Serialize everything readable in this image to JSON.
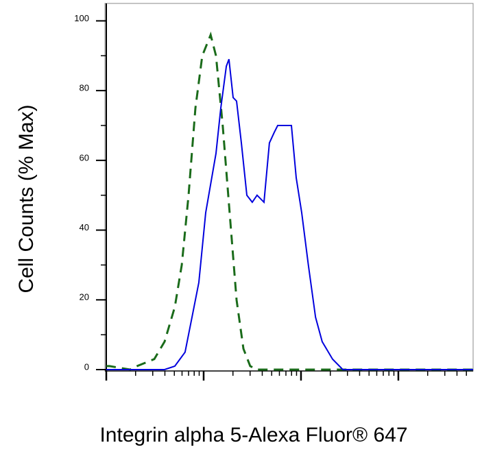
{
  "chart_data": {
    "type": "line",
    "xlabel": "Integrin alpha 5-Alexa Fluor® 647",
    "ylabel": "Cell Counts (% Max)",
    "xscale": "log",
    "xlim": [
      1,
      5860
    ],
    "xticks": [
      1,
      10,
      100,
      1000
    ],
    "ylim": [
      0,
      105
    ],
    "yticks": [
      0,
      20,
      40,
      60,
      80,
      100
    ],
    "series": [
      {
        "color": "#1a6b1a",
        "dashed": true,
        "x": [
          1,
          1.08,
          1.76,
          2.07,
          3.11,
          3.97,
          5.06,
          5.96,
          7.0,
          8.23,
          9.68,
          11.8,
          13.4,
          15.7,
          18.5,
          21.8,
          25.6,
          30.1,
          35.4,
          5860
        ],
        "values": [
          1,
          1,
          0,
          1,
          3,
          8,
          18,
          30,
          50,
          75,
          90,
          96,
          90,
          70,
          45,
          20,
          6,
          1,
          0,
          0
        ]
      },
      {
        "color": "#0000dd",
        "dashed": false,
        "x": [
          1,
          3.97,
          5.06,
          6.45,
          7.59,
          8.93,
          10.5,
          13.4,
          15.0,
          17.1,
          18.2,
          20.1,
          21.8,
          24.4,
          27.8,
          31.6,
          35.4,
          41.7,
          47.4,
          53.1,
          57.6,
          67.8,
          79.7,
          89.3,
          101.6,
          119,
          141,
          165,
          211,
          269,
          5860
        ],
        "values": [
          0,
          0,
          1,
          5,
          15,
          25,
          45,
          62,
          75,
          87,
          89,
          78,
          77,
          65,
          50,
          48,
          50,
          48,
          65,
          68,
          70,
          70,
          70,
          55,
          45,
          30,
          15,
          8,
          3,
          0,
          0
        ]
      }
    ]
  }
}
